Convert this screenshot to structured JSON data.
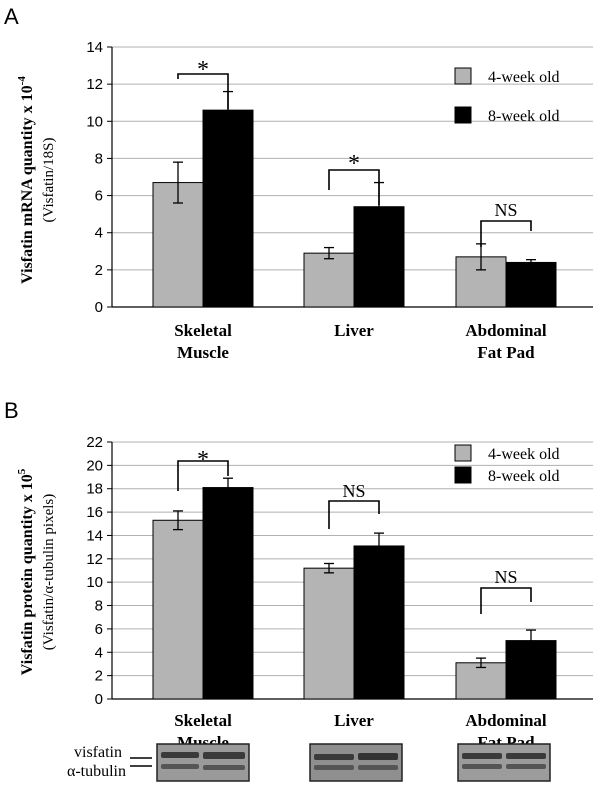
{
  "colors": {
    "series_4week": "#b4b4b4",
    "series_8week": "#000000",
    "grid": "#b0b0b0"
  },
  "chart_data": [
    {
      "type": "bar",
      "panel": "A",
      "title": "",
      "ylabel": "Visfatin mRNA quantity x 10",
      "ylabel_exp": "-4",
      "ylabel_sub": "(Visfatin/18S)",
      "categories": [
        [
          "Skeletal",
          "Muscle"
        ],
        [
          "Liver"
        ],
        [
          "Abdominal",
          "Fat Pad"
        ]
      ],
      "ylim": [
        0,
        14
      ],
      "yticks": [
        0,
        2,
        4,
        6,
        8,
        10,
        12,
        14
      ],
      "grid": true,
      "legend_position": "top-right",
      "series": [
        {
          "name": "4-week old",
          "values": [
            6.7,
            2.9,
            2.7
          ],
          "errors": [
            1.1,
            0.3,
            0.7
          ]
        },
        {
          "name": "8-week old",
          "values": [
            10.6,
            5.4,
            2.4
          ],
          "errors": [
            1.0,
            1.3,
            0.15
          ]
        }
      ],
      "annotations": [
        "*",
        "*",
        "NS"
      ]
    },
    {
      "type": "bar",
      "panel": "B",
      "title": "",
      "ylabel": "Visfatin protein quantity x 10",
      "ylabel_exp": "5",
      "ylabel_sub": "(Visfatin/α-tubulin pixels)",
      "categories": [
        [
          "Skeletal",
          "Muscle"
        ],
        [
          "Liver"
        ],
        [
          "Abdominal",
          "Fat Pad"
        ]
      ],
      "ylim": [
        0,
        22
      ],
      "yticks": [
        0,
        2,
        4,
        6,
        8,
        10,
        12,
        14,
        16,
        18,
        20,
        22
      ],
      "grid": true,
      "legend_position": "top-right",
      "series": [
        {
          "name": "4-week old",
          "values": [
            15.3,
            11.2,
            3.1
          ],
          "errors": [
            0.8,
            0.4,
            0.4
          ]
        },
        {
          "name": "8-week old",
          "values": [
            18.1,
            13.1,
            5.0
          ],
          "errors": [
            0.8,
            1.1,
            0.9
          ]
        }
      ],
      "annotations": [
        "*",
        "NS",
        "NS"
      ],
      "blot_labels": [
        "visfatin",
        "α-tubulin"
      ]
    }
  ]
}
